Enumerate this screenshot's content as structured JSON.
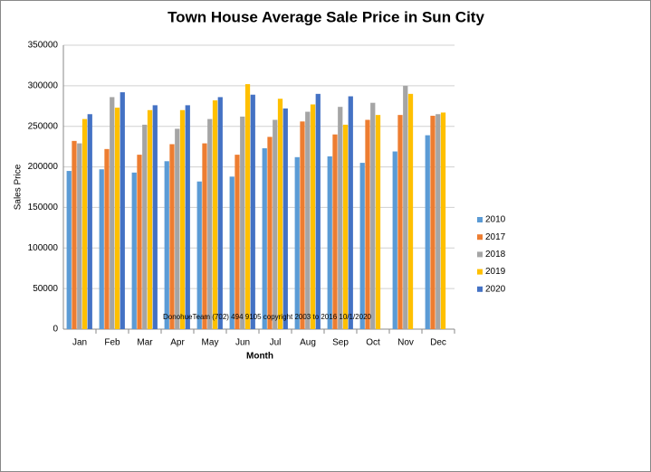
{
  "chart_data": {
    "type": "bar",
    "title": "Town House Average Sale Price in Sun City",
    "x_label": "Month",
    "y_label": "Sales Price",
    "annotation": "DonohueTeam  (702) 494 9105 copyright  2003  to 2016  10/1/2020",
    "categories": [
      "Jan",
      "Feb",
      "Mar",
      "Apr",
      "May",
      "Jun",
      "Jul",
      "Aug",
      "Sep",
      "Oct",
      "Nov",
      "Dec"
    ],
    "series": [
      {
        "name": "2010",
        "color": "#5b9bd5",
        "values": [
          195000,
          197000,
          193000,
          207000,
          182000,
          188000,
          223000,
          212000,
          213000,
          205000,
          219000,
          239000
        ]
      },
      {
        "name": "2017",
        "color": "#ed7d31",
        "values": [
          232000,
          222000,
          215000,
          228000,
          229000,
          215000,
          237000,
          256000,
          240000,
          258000,
          264000,
          263000
        ]
      },
      {
        "name": "2018",
        "color": "#a5a5a5",
        "values": [
          229000,
          286000,
          252000,
          247000,
          259000,
          262000,
          258000,
          268000,
          274000,
          279000,
          300000,
          265000
        ]
      },
      {
        "name": "2019",
        "color": "#ffc000",
        "values": [
          259000,
          273000,
          270000,
          270000,
          282000,
          302000,
          284000,
          277000,
          252000,
          264000,
          290000,
          267000
        ]
      },
      {
        "name": "2020",
        "color": "#4472c4",
        "values": [
          265000,
          292000,
          276000,
          276000,
          286000,
          289000,
          272000,
          290000,
          287000,
          null,
          null,
          null
        ]
      }
    ],
    "ylim": [
      0,
      350000
    ],
    "yticks": [
      0,
      50000,
      100000,
      150000,
      200000,
      250000,
      300000,
      350000
    ],
    "grid": true,
    "legend": "right"
  }
}
